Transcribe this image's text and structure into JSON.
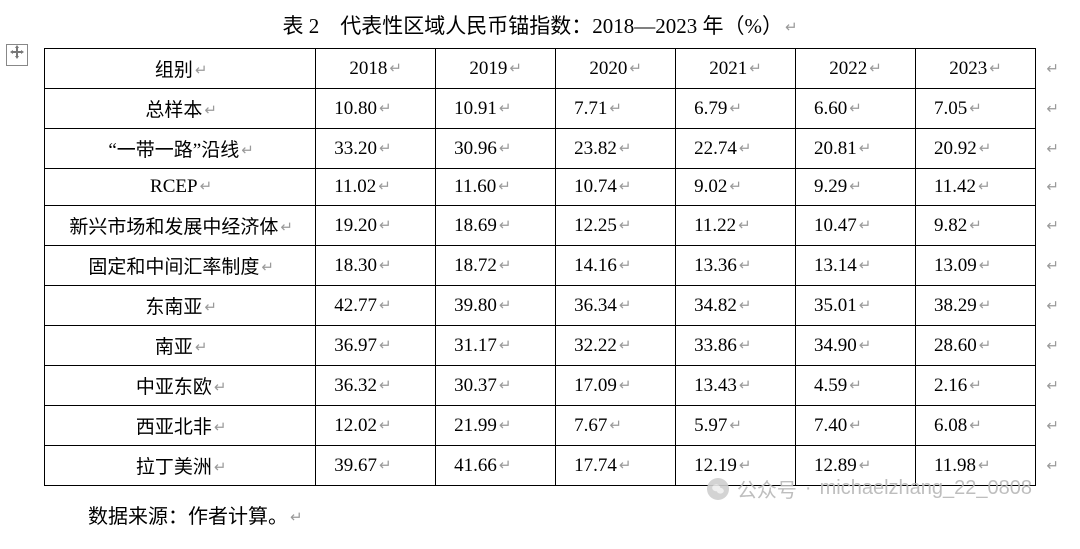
{
  "caption": "表 2　代表性区域人民币锚指数：2018—2023 年（%）",
  "paragraph_mark": "↵",
  "source_note": "数据来源：作者计算。",
  "watermark_label": "公众号",
  "watermark_account": "michaelzhang_22_0808",
  "table": {
    "type": "table",
    "header_label": "组别",
    "years": [
      "2018",
      "2019",
      "2020",
      "2021",
      "2022",
      "2023"
    ],
    "rows": [
      {
        "label": "总样本",
        "values": [
          "10.80",
          "10.91",
          "7.71",
          "6.79",
          "6.60",
          "7.05"
        ]
      },
      {
        "label": "“一带一路”沿线",
        "values": [
          "33.20",
          "30.96",
          "23.82",
          "22.74",
          "20.81",
          "20.92"
        ]
      },
      {
        "label": "RCEP",
        "values": [
          "11.02",
          "11.60",
          "10.74",
          "9.02",
          "9.29",
          "11.42"
        ]
      },
      {
        "label": "新兴市场和发展中经济体",
        "values": [
          "19.20",
          "18.69",
          "12.25",
          "11.22",
          "10.47",
          "9.82"
        ]
      },
      {
        "label": "固定和中间汇率制度",
        "values": [
          "18.30",
          "18.72",
          "14.16",
          "13.36",
          "13.14",
          "13.09"
        ]
      },
      {
        "label": "东南亚",
        "values": [
          "42.77",
          "39.80",
          "36.34",
          "34.82",
          "35.01",
          "38.29"
        ]
      },
      {
        "label": "南亚",
        "values": [
          "36.97",
          "31.17",
          "32.22",
          "33.86",
          "34.90",
          "28.60"
        ]
      },
      {
        "label": "中亚东欧",
        "values": [
          "36.32",
          "30.37",
          "17.09",
          "13.43",
          "4.59",
          "2.16"
        ]
      },
      {
        "label": "西亚北非",
        "values": [
          "12.02",
          "21.99",
          "7.67",
          "5.97",
          "7.40",
          "6.08"
        ]
      },
      {
        "label": "拉丁美洲",
        "values": [
          "39.67",
          "41.66",
          "17.74",
          "12.19",
          "12.89",
          "11.98"
        ]
      }
    ]
  },
  "style": {
    "font_family": "SimSun/Songti serif",
    "body_fontsize_pt": 15,
    "caption_fontsize_pt": 16,
    "border_color": "#000000",
    "background_color": "#ffffff",
    "mark_color": "#9a9a9a",
    "watermark_color": "#b8b8b8"
  }
}
